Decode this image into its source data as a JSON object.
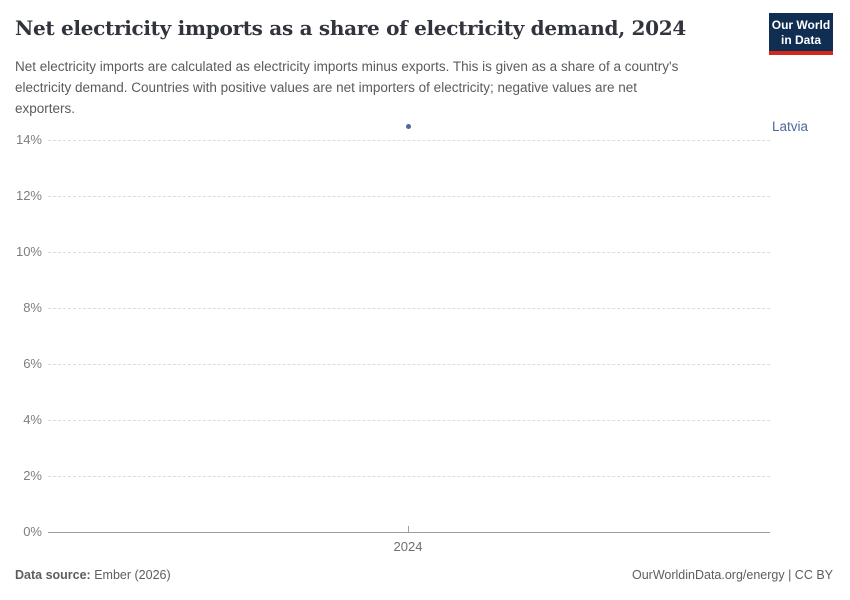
{
  "header": {
    "title": "Net electricity imports as a share of electricity demand, 2024",
    "subtitle_lines": [
      "Net electricity imports are calculated as electricity imports minus exports. This is given as a share of a country's",
      "electricity demand. Countries with positive values are net importers of electricity; negative values are net",
      "exporters."
    ],
    "logo": {
      "line1": "Our World",
      "line2": "in Data",
      "background_color": "#0f2e52",
      "accent_color": "#d3281e"
    }
  },
  "chart_data": {
    "type": "scatter",
    "title": "Net electricity imports as a share of electricity demand, 2024",
    "x": [
      2024
    ],
    "series": [
      {
        "name": "Latvia",
        "values": [
          14.5
        ],
        "color": "#4c6a9c"
      }
    ],
    "y_axis": {
      "unit": "%",
      "range": [
        0,
        14.7
      ],
      "ticks": [
        {
          "value": 0,
          "label": "0%"
        },
        {
          "value": 2,
          "label": "2%"
        },
        {
          "value": 4,
          "label": "4%"
        },
        {
          "value": 6,
          "label": "6%"
        },
        {
          "value": 8,
          "label": "8%"
        },
        {
          "value": 10,
          "label": "10%"
        },
        {
          "value": 12,
          "label": "12%"
        },
        {
          "value": 14,
          "label": "14%"
        }
      ],
      "gridlines": "dashed"
    },
    "x_axis": {
      "ticks": [
        {
          "value": 2024,
          "label": "2024"
        }
      ]
    },
    "legend_position": "right"
  },
  "footer": {
    "source_label": "Data source:",
    "source_value": "Ember (2026)",
    "credit": "OurWorldinData.org/energy | CC BY"
  }
}
